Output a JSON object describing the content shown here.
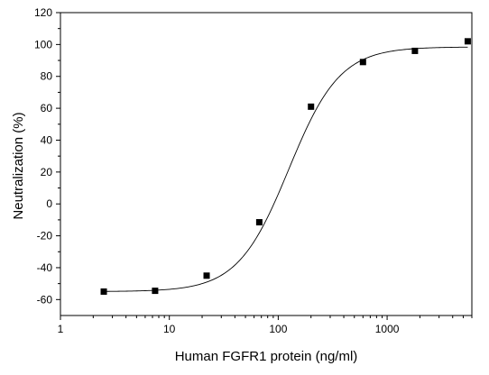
{
  "chart_data": {
    "type": "scatter",
    "xlabel": "Human FGFR1 protein (ng/ml)",
    "ylabel": "Neutralization (%)",
    "x_scale": "log",
    "xlim": [
      1,
      6000
    ],
    "ylim": [
      -70,
      120
    ],
    "x_ticks": [
      1,
      10,
      100,
      1000
    ],
    "y_ticks": [
      -60,
      -40,
      -20,
      0,
      20,
      40,
      60,
      80,
      100,
      120
    ],
    "grid": false,
    "series": [
      {
        "marker": "square",
        "x": [
          2.5,
          7.4,
          22,
          67,
          200,
          600,
          1800,
          5500
        ],
        "y": [
          -55,
          -54.5,
          -45,
          -11.5,
          61,
          89,
          96,
          102
        ]
      }
    ],
    "fit_curve": {
      "type": "4PL",
      "bottom": -55,
      "top": 98.5,
      "ec50": 125,
      "hill": 1.85
    }
  }
}
